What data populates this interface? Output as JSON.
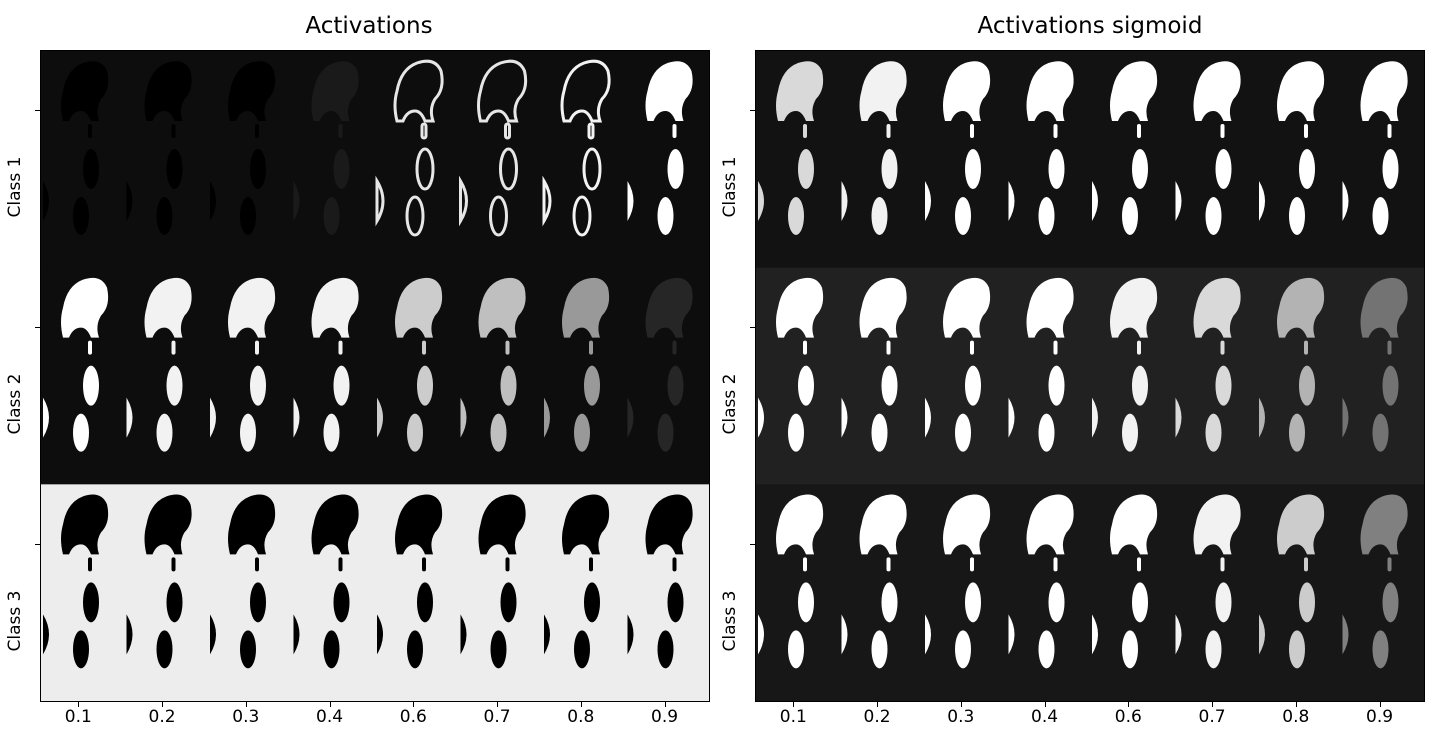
{
  "chart_data": [
    {
      "type": "heatmap",
      "title": "Activations",
      "xtick_labels": [
        "0.1",
        "0.2",
        "0.3",
        "0.4",
        "0.6",
        "0.7",
        "0.8",
        "0.9"
      ],
      "ytick_labels": [
        "Class 1",
        "Class 2",
        "Class 3"
      ],
      "colormap": "gray",
      "background_levels": [
        0.05,
        0.05,
        0.93
      ],
      "shape_intensity": [
        [
          0.0,
          0.0,
          0.0,
          0.1,
          0.9,
          0.9,
          0.95,
          1.0
        ],
        [
          1.0,
          0.95,
          0.95,
          0.95,
          0.8,
          0.75,
          0.6,
          0.15
        ],
        [
          0.0,
          0.0,
          0.0,
          0.0,
          0.0,
          0.0,
          0.0,
          0.0
        ]
      ],
      "class1_ring_style": [
        false,
        false,
        false,
        false,
        true,
        true,
        true,
        false
      ]
    },
    {
      "type": "heatmap",
      "title": "Activations sigmoid",
      "xtick_labels": [
        "0.1",
        "0.2",
        "0.3",
        "0.4",
        "0.6",
        "0.7",
        "0.8",
        "0.9"
      ],
      "ytick_labels": [
        "Class 1",
        "Class 2",
        "Class 3"
      ],
      "colormap": "gray",
      "background_levels": [
        0.07,
        0.13,
        0.09
      ],
      "shape_intensity": [
        [
          0.85,
          0.95,
          1.0,
          1.0,
          1.0,
          1.0,
          1.0,
          1.0
        ],
        [
          1.0,
          1.0,
          1.0,
          1.0,
          0.95,
          0.85,
          0.7,
          0.45
        ],
        [
          1.0,
          1.0,
          1.0,
          1.0,
          1.0,
          0.95,
          0.8,
          0.5
        ]
      ]
    }
  ]
}
